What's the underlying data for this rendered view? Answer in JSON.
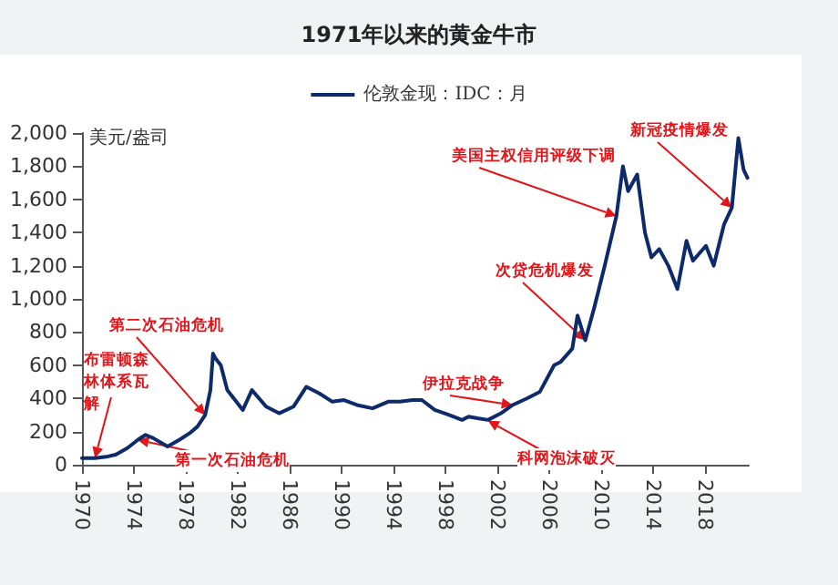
{
  "chart_data": {
    "type": "line",
    "title": "1971年以来的黄金牛市",
    "ylabel": "美元/盎司",
    "x": [
      1970,
      1971,
      1972,
      1972.6,
      1973.5,
      1974.3,
      1974.9,
      1975.5,
      1976.6,
      1977.5,
      1978.3,
      1978.9,
      1979.5,
      1979.9,
      1980.1,
      1980.3,
      1980.7,
      1981.2,
      1982.4,
      1983.1,
      1984.2,
      1985.2,
      1986.3,
      1987.3,
      1988.3,
      1989.3,
      1990.2,
      1991.2,
      1992.4,
      1993.6,
      1994.5,
      1995.5,
      1996.2,
      1997.2,
      1998.3,
      1999.3,
      1999.8,
      2000.5,
      2001.3,
      2002.3,
      2003.2,
      2004.3,
      2005.3,
      2006.4,
      2006.9,
      2007.8,
      2008.2,
      2008.8,
      2009.5,
      2010.3,
      2011.2,
      2011.7,
      2012.1,
      2012.8,
      2013.4,
      2013.9,
      2014.5,
      2015.2,
      2015.9,
      2016.6,
      2017.1,
      2018.1,
      2018.7,
      2019.5,
      2020.1,
      2020.6,
      2021.0,
      2021.3
    ],
    "series": [
      {
        "name": "伦敦金现：IDC：月",
        "color": "#0d2a6b",
        "values": [
          40,
          40,
          50,
          60,
          100,
          150,
          180,
          160,
          110,
          150,
          190,
          230,
          300,
          450,
          670,
          640,
          600,
          450,
          330,
          450,
          350,
          310,
          350,
          470,
          430,
          380,
          390,
          360,
          340,
          380,
          380,
          390,
          390,
          330,
          300,
          270,
          290,
          280,
          270,
          310,
          360,
          400,
          440,
          600,
          620,
          700,
          900,
          750,
          950,
          1200,
          1500,
          1800,
          1650,
          1750,
          1400,
          1250,
          1300,
          1200,
          1060,
          1350,
          1230,
          1320,
          1200,
          1450,
          1550,
          1970,
          1780,
          1730
        ]
      }
    ],
    "xlim": [
      1970,
      2021.4
    ],
    "xticks": [
      1970,
      1974,
      1978,
      1982,
      1986,
      1990,
      1994,
      1998,
      2002,
      2006,
      2010,
      2014,
      2018
    ],
    "ylim": [
      0,
      2000
    ],
    "yticks": [
      0,
      200,
      400,
      600,
      800,
      {
        "value": 1000,
        "label": "1,000"
      },
      {
        "value": 1200,
        "label": "1,200"
      },
      {
        "value": 1400,
        "label": "1,400"
      },
      {
        "value": 1600,
        "label": "1,600"
      },
      {
        "value": 1800,
        "label": "1,800"
      },
      {
        "value": 2000,
        "label": "2,000"
      }
    ],
    "grid": false,
    "legend": "top",
    "marker": "none",
    "line_style": "solid",
    "annotations": [
      {
        "text": "布雷顿森林体系瓦解",
        "x": 1971,
        "y": 40
      },
      {
        "text": "第一次石油危机",
        "x": 1974.3,
        "y": 150
      },
      {
        "text": "第二次石油危机",
        "x": 1979.5,
        "y": 300
      },
      {
        "text": "伊拉克战争",
        "x": 2003.2,
        "y": 360
      },
      {
        "text": "科网泡沫破灭",
        "x": 2001.3,
        "y": 265
      },
      {
        "text": "次贷危机爆发",
        "x": 2008.8,
        "y": 750
      },
      {
        "text": "美国主权信用评级下调",
        "x": 2011.2,
        "y": 1500
      },
      {
        "text": "新冠疫情爆发",
        "x": 2020.1,
        "y": 1550
      }
    ]
  }
}
